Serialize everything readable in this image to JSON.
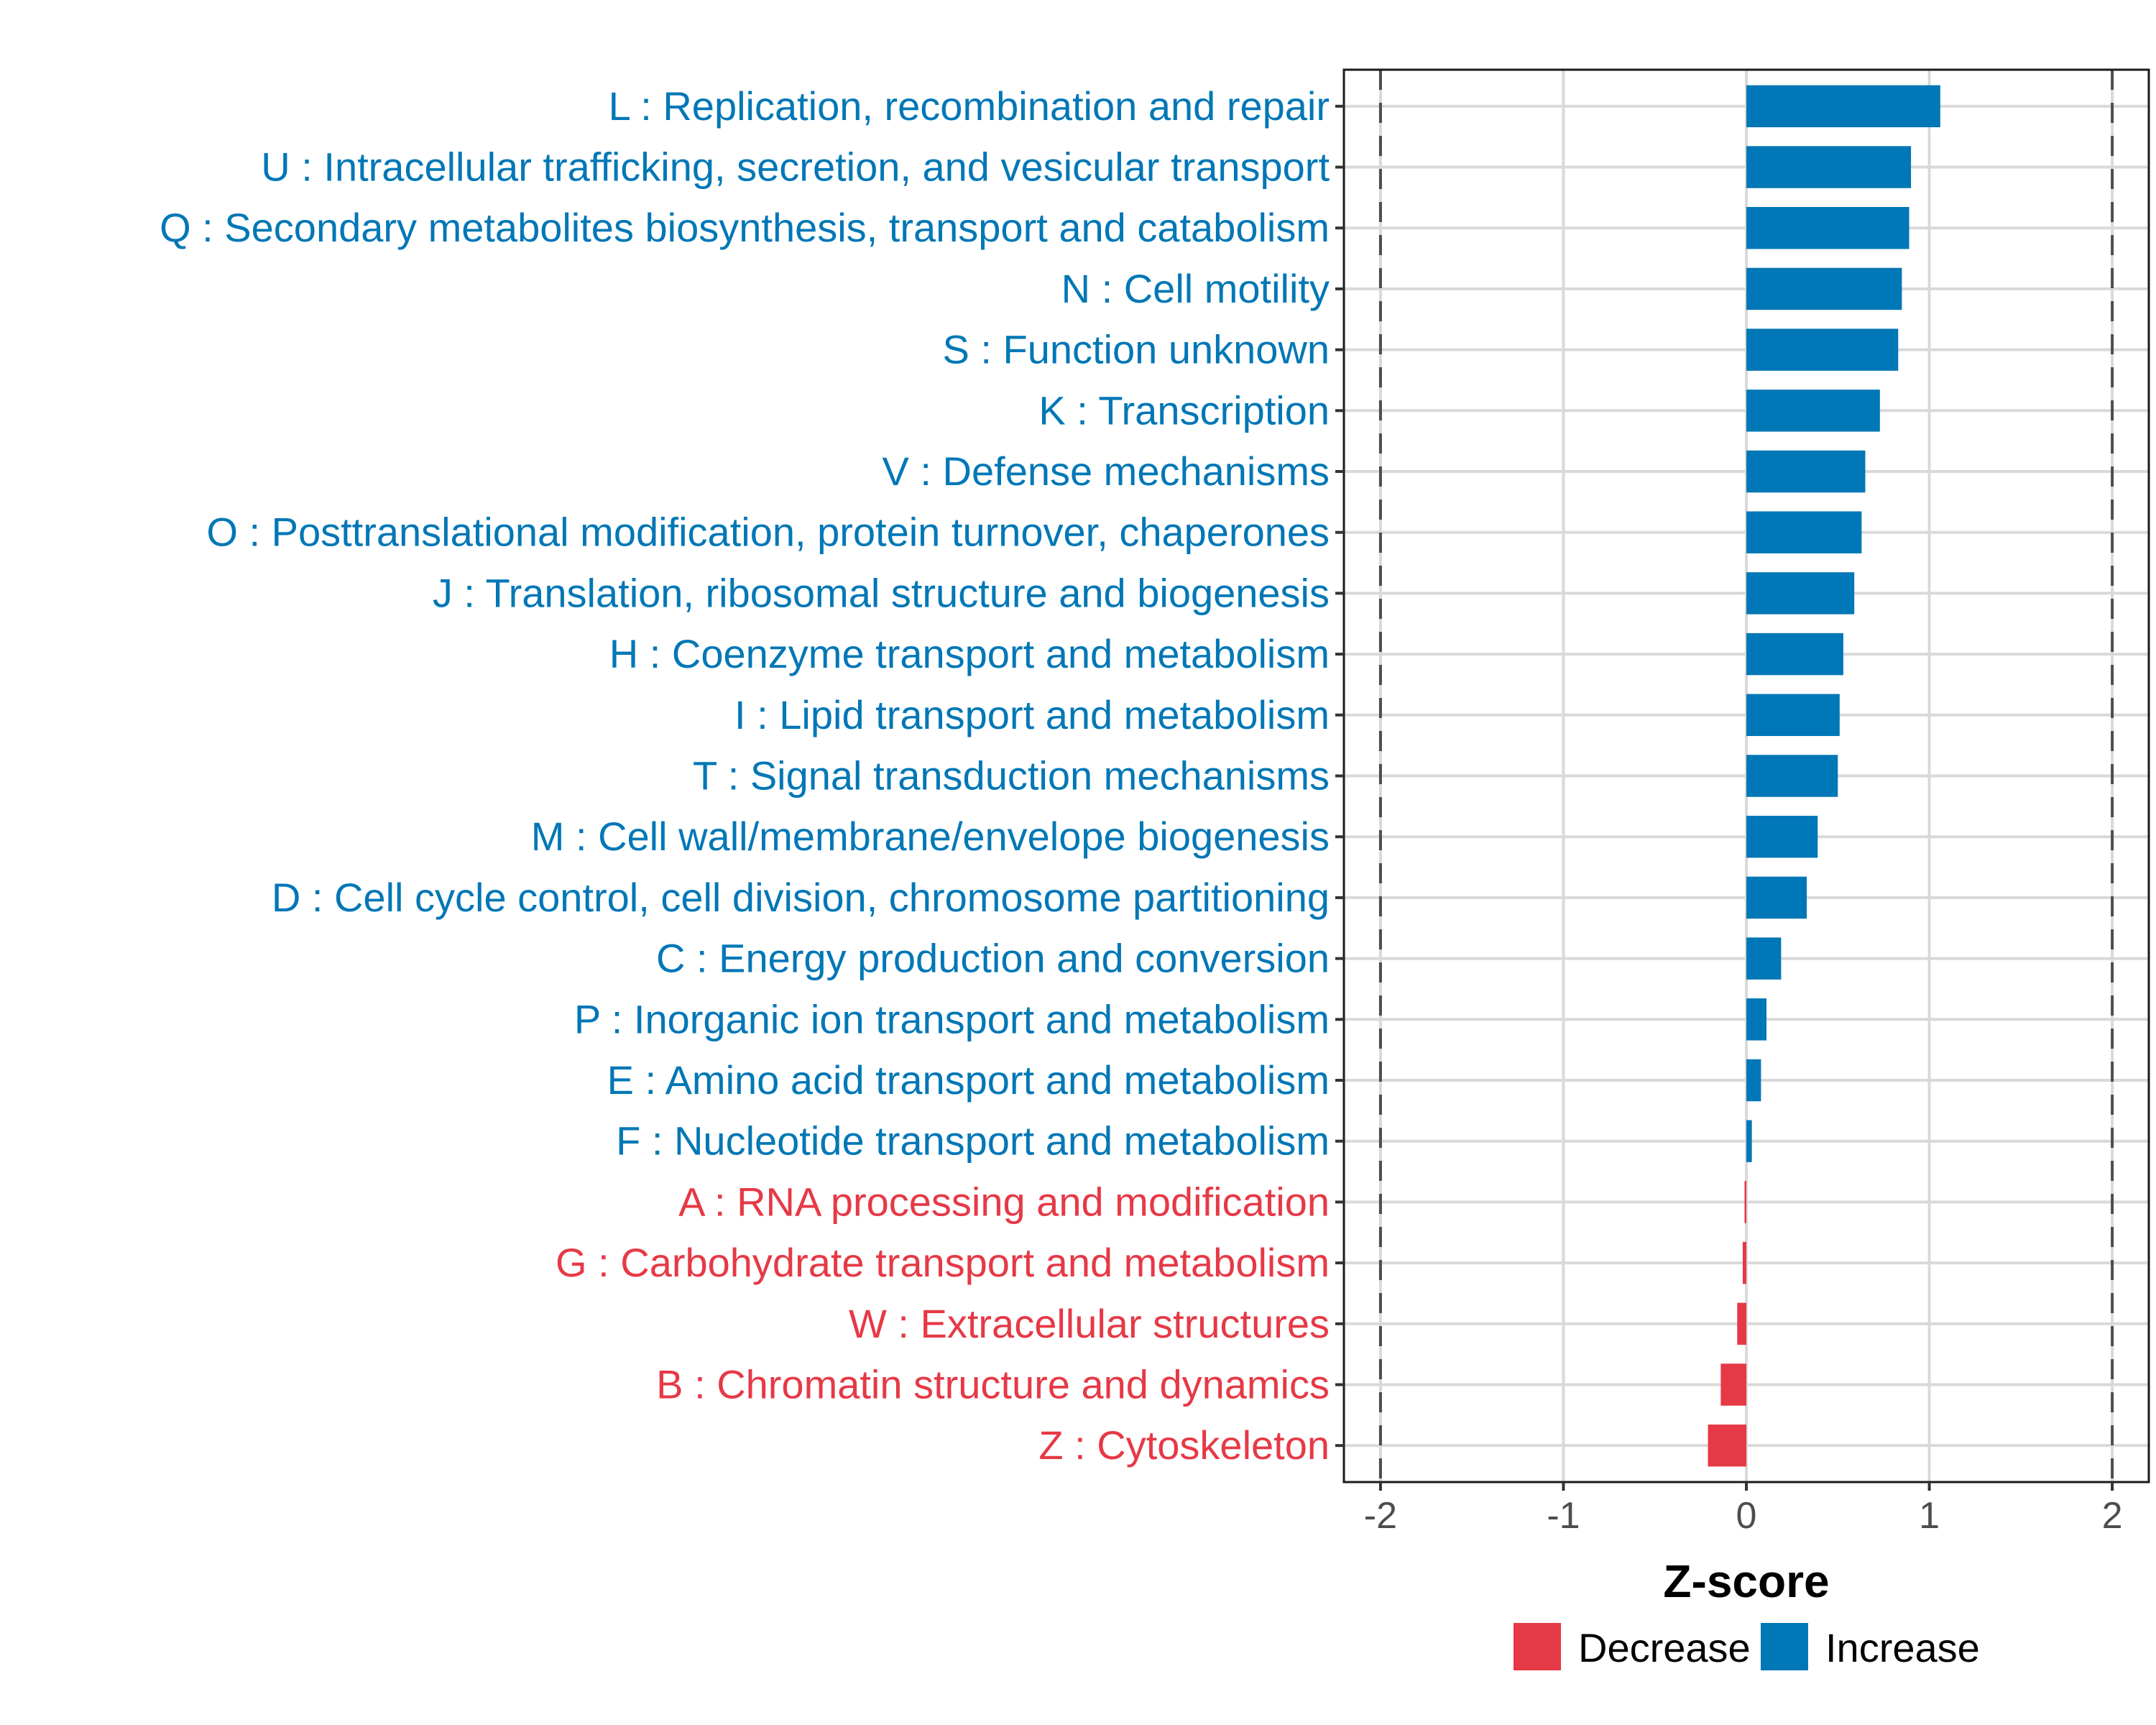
{
  "chart_data": {
    "type": "bar",
    "orientation": "horizontal",
    "title": "",
    "xlabel": "Z-score",
    "ylabel": "",
    "xlim": [
      -2.2,
      2.2
    ],
    "xticks": [
      -2,
      -1,
      0,
      1,
      2
    ],
    "xtick_labels": [
      "-2",
      "-1",
      "0",
      "1",
      "2"
    ],
    "reference_lines": [
      -2,
      2
    ],
    "grid": true,
    "legend": {
      "placement": "bottom",
      "entries": [
        {
          "label": "Decrease",
          "color": "#E63946"
        },
        {
          "label": "Increase",
          "color": "#0077B6"
        }
      ]
    },
    "colors": {
      "Decrease": "#E63946",
      "Increase": "#0077B6"
    },
    "categories": [
      "L : Replication, recombination and repair",
      "U : Intracellular trafficking, secretion, and vesicular transport",
      "Q : Secondary metabolites biosynthesis, transport and catabolism",
      "N : Cell motility",
      "S : Function unknown",
      "K : Transcription",
      "V : Defense mechanisms",
      "O : Posttranslational modification, protein turnover, chaperones",
      "J : Translation, ribosomal structure and biogenesis",
      "H : Coenzyme transport and metabolism",
      "I : Lipid transport and metabolism",
      "T : Signal transduction mechanisms",
      "M : Cell wall/membrane/envelope biogenesis",
      "D : Cell cycle control, cell division, chromosome partitioning",
      "C : Energy production and conversion",
      "P : Inorganic ion transport and metabolism",
      "E : Amino acid transport and metabolism",
      "F : Nucleotide transport and metabolism",
      "A : RNA processing and modification",
      "G : Carbohydrate transport and metabolism",
      "W : Extracellular structures",
      "B : Chromatin structure and dynamics",
      "Z : Cytoskeleton"
    ],
    "values": [
      1.06,
      0.9,
      0.89,
      0.85,
      0.83,
      0.73,
      0.65,
      0.63,
      0.59,
      0.53,
      0.51,
      0.5,
      0.39,
      0.33,
      0.19,
      0.11,
      0.08,
      0.03,
      -0.01,
      -0.02,
      -0.05,
      -0.14,
      -0.21
    ],
    "groups": [
      "Increase",
      "Increase",
      "Increase",
      "Increase",
      "Increase",
      "Increase",
      "Increase",
      "Increase",
      "Increase",
      "Increase",
      "Increase",
      "Increase",
      "Increase",
      "Increase",
      "Increase",
      "Increase",
      "Increase",
      "Increase",
      "Decrease",
      "Decrease",
      "Decrease",
      "Decrease",
      "Decrease"
    ]
  }
}
